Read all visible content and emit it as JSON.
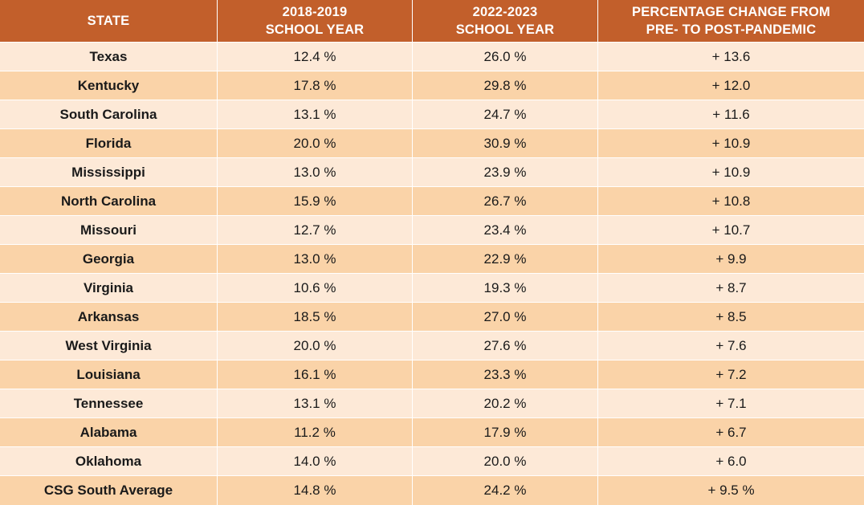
{
  "chart_data": {
    "type": "table",
    "columns": [
      "STATE",
      "2018-2019\nSCHOOL YEAR",
      "2022-2023\nSCHOOL YEAR",
      "PERCENTAGE CHANGE FROM\nPRE- TO POST-PANDEMIC"
    ],
    "rows": [
      [
        "Texas",
        "12.4 %",
        "26.0 %",
        "+ 13.6"
      ],
      [
        "Kentucky",
        "17.8 %",
        "29.8 %",
        "+ 12.0"
      ],
      [
        "South Carolina",
        "13.1 %",
        "24.7 %",
        "+ 11.6"
      ],
      [
        "Florida",
        "20.0 %",
        "30.9 %",
        "+ 10.9"
      ],
      [
        "Mississippi",
        "13.0 %",
        "23.9 %",
        "+ 10.9"
      ],
      [
        "North Carolina",
        "15.9 %",
        "26.7 %",
        "+ 10.8"
      ],
      [
        "Missouri",
        "12.7 %",
        "23.4 %",
        "+ 10.7"
      ],
      [
        "Georgia",
        "13.0 %",
        "22.9 %",
        "+ 9.9"
      ],
      [
        "Virginia",
        "10.6 %",
        "19.3 %",
        "+ 8.7"
      ],
      [
        "Arkansas",
        "18.5 %",
        "27.0 %",
        "+ 8.5"
      ],
      [
        "West Virginia",
        "20.0 %",
        "27.6 %",
        "+ 7.6"
      ],
      [
        "Louisiana",
        "16.1 %",
        "23.3 %",
        "+ 7.2"
      ],
      [
        "Tennessee",
        "13.1 %",
        "20.2 %",
        "+ 7.1"
      ],
      [
        "Alabama",
        "11.2 %",
        "17.9 %",
        "+ 6.7"
      ],
      [
        "Oklahoma",
        "14.0 %",
        "20.0 %",
        "+ 6.0"
      ],
      [
        "CSG South Average",
        "14.8 %",
        "24.2 %",
        "+ 9.5 %"
      ]
    ],
    "colors": {
      "header": "#c25f2b",
      "row_light": "#fde9d7",
      "row_dark": "#fad3a8"
    }
  }
}
